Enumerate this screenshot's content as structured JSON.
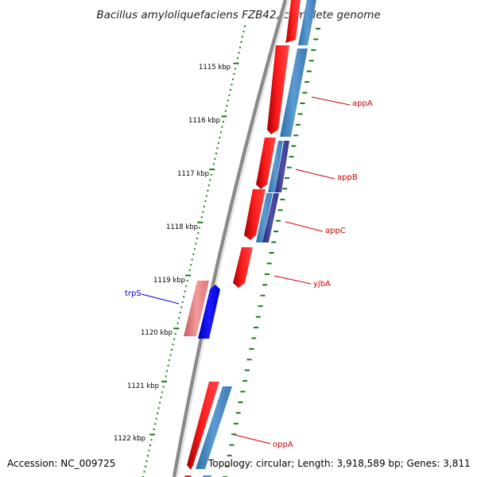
{
  "title": "Bacillus amyloliquefaciens FZB42, complete genome",
  "footer": {
    "accession": "Accession: NC_009725",
    "summary": "Topology: circular; Length: 3,918,589 bp; Genes: 3,811"
  },
  "ruler": {
    "unit": "kbp",
    "labels": [
      "1115 kbp",
      "1116 kbp",
      "1117 kbp",
      "1118 kbp",
      "1119 kbp",
      "1120 kbp",
      "1121 kbp",
      "1122 kbp"
    ]
  },
  "genes": [
    {
      "name": "appA",
      "color": "#d00000"
    },
    {
      "name": "appB",
      "color": "#d00000"
    },
    {
      "name": "appC",
      "color": "#d00000"
    },
    {
      "name": "yjbA",
      "color": "#d00000"
    },
    {
      "name": "trpS",
      "color": "#0000cc"
    },
    {
      "name": "oppA",
      "color": "#d00000"
    }
  ],
  "colors": {
    "backbone": "#8a8a8a",
    "cds_forward": "#ff0000",
    "cds_reverse": "#0000ff",
    "cds_faded": "#f08080",
    "blast_hit": "#4f8fc8",
    "blast_hit_dark": "#3b3b8a",
    "ticks": "#1a7a1a"
  }
}
